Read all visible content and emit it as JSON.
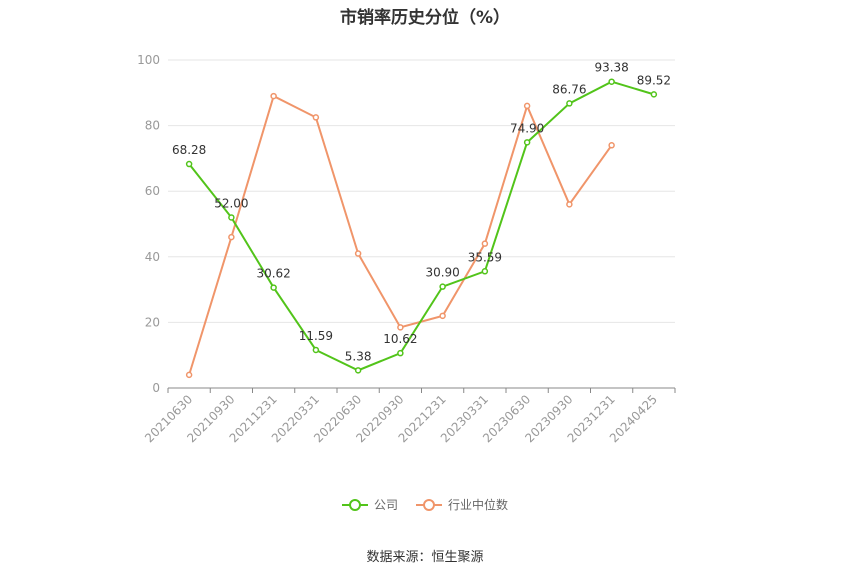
{
  "chart_data": {
    "type": "line",
    "title": "市销率历史分位（%）",
    "categories": [
      "20210630",
      "20210930",
      "20211231",
      "20220331",
      "20220630",
      "20220930",
      "20221231",
      "20230331",
      "20230630",
      "20230930",
      "20231231",
      "20240425"
    ],
    "ylim": [
      0,
      100
    ],
    "yticks": [
      0,
      20,
      40,
      60,
      80,
      100
    ],
    "grid": true,
    "legend_position": "bottom",
    "series": [
      {
        "name": "公司",
        "color": "#52c41a",
        "values": [
          68.28,
          52.0,
          30.62,
          11.59,
          5.38,
          10.62,
          30.9,
          35.59,
          74.9,
          86.76,
          93.38,
          89.52
        ],
        "labels": [
          "68.28",
          "52.00",
          "30.62",
          "11.59",
          "5.38",
          "10.62",
          "30.90",
          "35.59",
          "74.90",
          "86.76",
          "93.38",
          "89.52"
        ]
      },
      {
        "name": "行业中位数",
        "color": "#f0956a",
        "values": [
          4,
          46,
          89,
          82.5,
          41,
          18.5,
          22,
          44,
          86,
          56,
          74,
          null
        ]
      }
    ]
  },
  "source": "数据来源：恒生聚源"
}
